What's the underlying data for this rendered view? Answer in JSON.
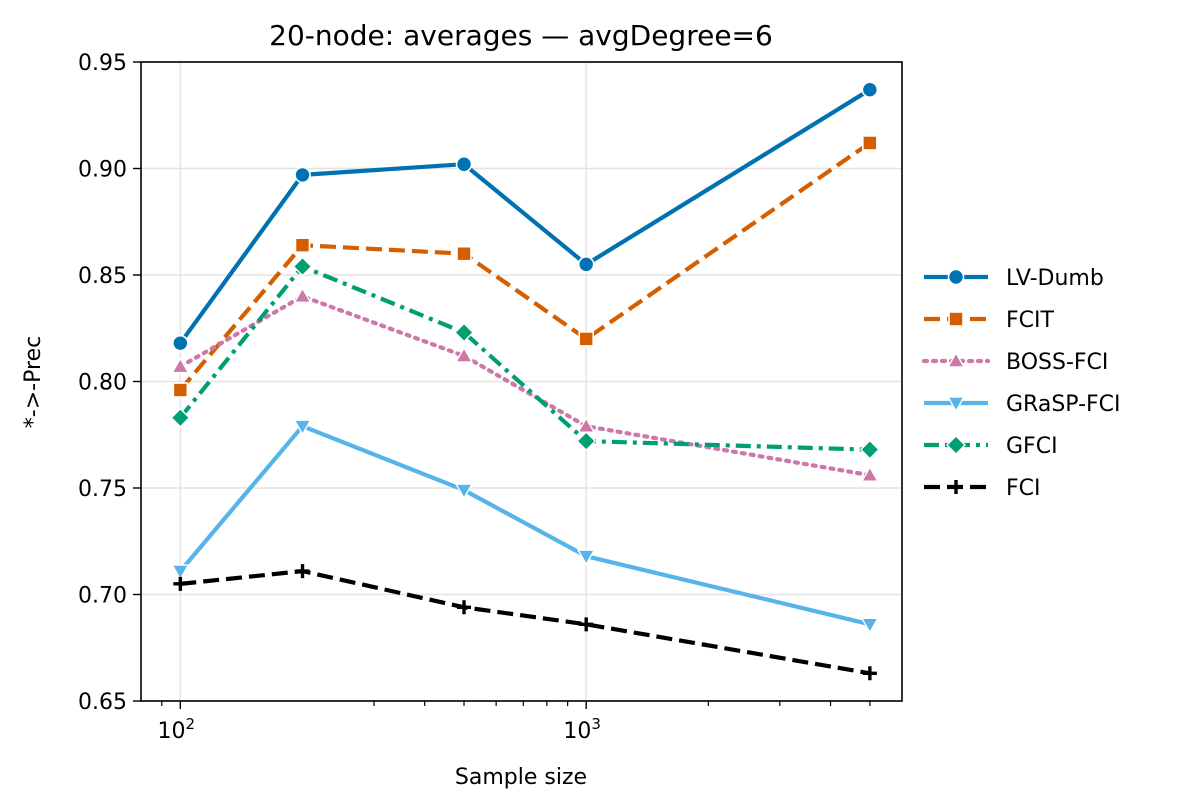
{
  "chart_data": {
    "type": "line",
    "title": "20-node: averages — avgDegree=6",
    "xlabel": "Sample size",
    "ylabel": "*->-Prec",
    "x_scale": "log",
    "x": [
      100,
      200,
      500,
      1000,
      5000
    ],
    "xlim": [
      80,
      6000
    ],
    "ylim": [
      0.65,
      0.95
    ],
    "y_ticks": [
      "0.65",
      "0.70",
      "0.75",
      "0.80",
      "0.85",
      "0.90",
      "0.95"
    ],
    "x_tick_labels": [
      {
        "base": "10",
        "exp": "2",
        "value": 100
      },
      {
        "base": "10",
        "exp": "3",
        "value": 1000
      }
    ],
    "grid": true,
    "legend_placement": "outside-right",
    "series": [
      {
        "name": "LV-Dumb",
        "color": "#0072b2",
        "dash": "solid",
        "marker": "circle",
        "values": [
          0.818,
          0.897,
          0.902,
          0.855,
          0.937
        ]
      },
      {
        "name": "FCIT",
        "color": "#d55e00",
        "dash": "dashed",
        "marker": "square",
        "values": [
          0.796,
          0.864,
          0.86,
          0.82,
          0.912
        ]
      },
      {
        "name": "BOSS-FCI",
        "color": "#cc79a7",
        "dash": "dotted",
        "marker": "triangle-up",
        "values": [
          0.807,
          0.84,
          0.812,
          0.779,
          0.756
        ]
      },
      {
        "name": "GRaSP-FCI",
        "color": "#56b4e9",
        "dash": "solid",
        "marker": "triangle-down",
        "values": [
          0.711,
          0.779,
          0.749,
          0.718,
          0.686
        ]
      },
      {
        "name": "GFCI",
        "color": "#009e73",
        "dash": "dashdot",
        "marker": "diamond",
        "values": [
          0.783,
          0.854,
          0.823,
          0.772,
          0.768
        ]
      },
      {
        "name": "FCI",
        "color": "#000000",
        "dash": "dashed",
        "marker": "plus",
        "values": [
          0.705,
          0.711,
          0.694,
          0.686,
          0.663
        ]
      }
    ]
  }
}
